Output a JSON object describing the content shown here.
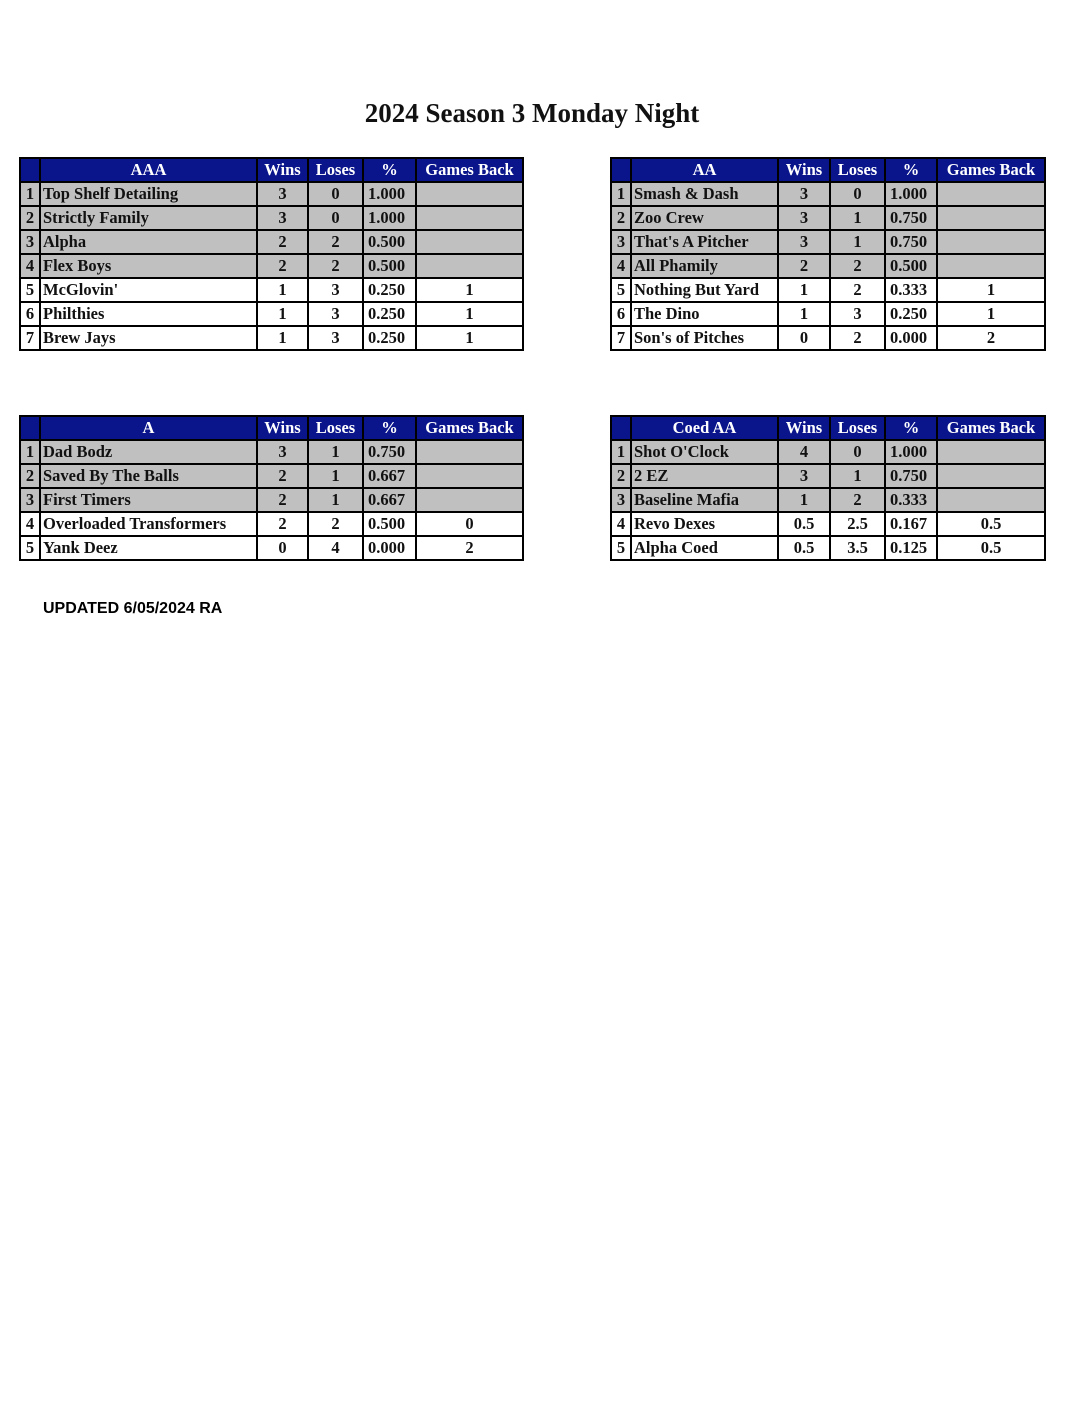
{
  "title": "2024 Season 3 Monday Night",
  "columns": {
    "wins": "Wins",
    "loses": "Loses",
    "pct": "%",
    "games_back": "Games Back"
  },
  "colors": {
    "header_bg": "#0a158c",
    "shaded_row": "#c0c0c0"
  },
  "tables": [
    {
      "division": "AAA",
      "rows": [
        {
          "rank": "1",
          "team": "Top Shelf Detailing",
          "wins": "3",
          "loses": "0",
          "pct": "1.000",
          "gb": "",
          "shaded": true
        },
        {
          "rank": "2",
          "team": "Strictly Family",
          "wins": "3",
          "loses": "0",
          "pct": "1.000",
          "gb": "",
          "shaded": true
        },
        {
          "rank": "3",
          "team": "Alpha",
          "wins": "2",
          "loses": "2",
          "pct": "0.500",
          "gb": "",
          "shaded": true
        },
        {
          "rank": "4",
          "team": "Flex Boys",
          "wins": "2",
          "loses": "2",
          "pct": "0.500",
          "gb": "",
          "shaded": true
        },
        {
          "rank": "5",
          "team": "McGlovin'",
          "wins": "1",
          "loses": "3",
          "pct": "0.250",
          "gb": "1",
          "shaded": false
        },
        {
          "rank": "6",
          "team": "Philthies",
          "wins": "1",
          "loses": "3",
          "pct": "0.250",
          "gb": "1",
          "shaded": false
        },
        {
          "rank": "7",
          "team": "Brew Jays",
          "wins": "1",
          "loses": "3",
          "pct": "0.250",
          "gb": "1",
          "shaded": false
        }
      ]
    },
    {
      "division": "AA",
      "rows": [
        {
          "rank": "1",
          "team": "Smash & Dash",
          "wins": "3",
          "loses": "0",
          "pct": "1.000",
          "gb": "",
          "shaded": true
        },
        {
          "rank": "2",
          "team": "Zoo Crew",
          "wins": "3",
          "loses": "1",
          "pct": "0.750",
          "gb": "",
          "shaded": true
        },
        {
          "rank": "3",
          "team": "That's A Pitcher",
          "wins": "3",
          "loses": "1",
          "pct": "0.750",
          "gb": "",
          "shaded": true
        },
        {
          "rank": "4",
          "team": "All Phamily",
          "wins": "2",
          "loses": "2",
          "pct": "0.500",
          "gb": "",
          "shaded": true
        },
        {
          "rank": "5",
          "team": "Nothing But Yard",
          "wins": "1",
          "loses": "2",
          "pct": "0.333",
          "gb": "1",
          "shaded": false
        },
        {
          "rank": "6",
          "team": "The Dino",
          "wins": "1",
          "loses": "3",
          "pct": "0.250",
          "gb": "1",
          "shaded": false
        },
        {
          "rank": "7",
          "team": "Son's of Pitches",
          "wins": "0",
          "loses": "2",
          "pct": "0.000",
          "gb": "2",
          "shaded": false
        }
      ]
    },
    {
      "division": "A",
      "rows": [
        {
          "rank": "1",
          "team": "Dad Bodz",
          "wins": "3",
          "loses": "1",
          "pct": "0.750",
          "gb": "",
          "shaded": true
        },
        {
          "rank": "2",
          "team": "Saved By The Balls",
          "wins": "2",
          "loses": "1",
          "pct": "0.667",
          "gb": "",
          "shaded": true
        },
        {
          "rank": "3",
          "team": "First Timers",
          "wins": "2",
          "loses": "1",
          "pct": "0.667",
          "gb": "",
          "shaded": true
        },
        {
          "rank": "4",
          "team": "Overloaded Transformers",
          "wins": "2",
          "loses": "2",
          "pct": "0.500",
          "gb": "0",
          "shaded": false
        },
        {
          "rank": "5",
          "team": "Yank Deez",
          "wins": "0",
          "loses": "4",
          "pct": "0.000",
          "gb": "2",
          "shaded": false
        }
      ]
    },
    {
      "division": "Coed AA",
      "rows": [
        {
          "rank": "1",
          "team": "Shot O'Clock",
          "wins": "4",
          "loses": "0",
          "pct": "1.000",
          "gb": "",
          "shaded": true
        },
        {
          "rank": "2",
          "team": "2 EZ",
          "wins": "3",
          "loses": "1",
          "pct": "0.750",
          "gb": "",
          "shaded": true
        },
        {
          "rank": "3",
          "team": "Baseline Mafia",
          "wins": "1",
          "loses": "2",
          "pct": "0.333",
          "gb": "",
          "shaded": true
        },
        {
          "rank": "4",
          "team": "Revo Dexes",
          "wins": "0.5",
          "loses": "2.5",
          "pct": "0.167",
          "gb": "0.5",
          "shaded": false
        },
        {
          "rank": "5",
          "team": "Alpha Coed",
          "wins": "0.5",
          "loses": "3.5",
          "pct": "0.125",
          "gb": "0.5",
          "shaded": false
        }
      ]
    }
  ],
  "footer": {
    "updated": "UPDATED 6/05/2024 RA"
  }
}
